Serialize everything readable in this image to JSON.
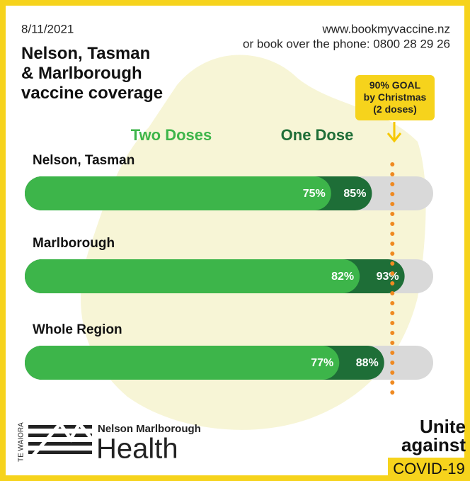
{
  "date": "8/11/2021",
  "website": "www.bookmyvaccine.nz",
  "phone": "or book over the phone: 0800 28 29 26",
  "chart_data": {
    "type": "bar",
    "orientation": "horizontal",
    "title": "Nelson, Tasman\n& Marlborough\nvaccine coverage",
    "categories": [
      "Nelson, Tasman",
      "Marlborough",
      "Whole Region"
    ],
    "series": [
      {
        "name": "One Dose",
        "color": "#1e6e37",
        "values": [
          85,
          93,
          88
        ],
        "value_labels": [
          "85%",
          "93%",
          "88%"
        ]
      },
      {
        "name": "Two Doses",
        "color": "#3db54a",
        "values": [
          75,
          82,
          77
        ],
        "value_labels": [
          "75%",
          "82%",
          "77%"
        ]
      }
    ],
    "xlim": [
      0,
      100
    ],
    "goal": {
      "value": 90,
      "label": "90% GOAL\nby Christmas\n(2 doses)",
      "color": "#ef8a22"
    }
  },
  "logo": {
    "side_text": "TE WAIORA",
    "org": "Nelson Marlborough",
    "name": "Health"
  },
  "campaign": {
    "line1": "Unite",
    "line2": "against",
    "line3": "COVID-19"
  }
}
